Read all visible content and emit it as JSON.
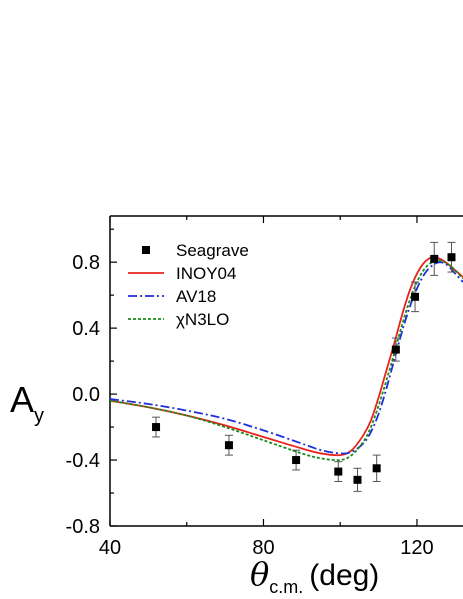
{
  "chart_data": {
    "type": "line",
    "title": "",
    "xlabel": {
      "symbol": "θ",
      "subscript": "c.m.",
      "unit": "(deg)"
    },
    "ylabel": {
      "symbol": "A",
      "subscript": "y"
    },
    "xlim": [
      40,
      132
    ],
    "ylim": [
      -0.8,
      1.08
    ],
    "x_ticks": [
      40,
      80,
      120
    ],
    "y_ticks": [
      -0.8,
      -0.4,
      0.0,
      0.4,
      0.8
    ],
    "y_tick_labels": [
      "-0.8",
      "-0.4",
      "0.0",
      "0.4",
      "0.8"
    ],
    "grid": false,
    "legend_position": "top-left",
    "series": [
      {
        "name": "Seagrave",
        "kind": "scatter",
        "marker": "square",
        "color": "#000000",
        "points": [
          {
            "x": 52,
            "y": -0.2,
            "err": 0.06
          },
          {
            "x": 71,
            "y": -0.31,
            "err": 0.06
          },
          {
            "x": 88.5,
            "y": -0.4,
            "err": 0.06
          },
          {
            "x": 99.5,
            "y": -0.47,
            "err": 0.06
          },
          {
            "x": 104.5,
            "y": -0.52,
            "err": 0.07
          },
          {
            "x": 109.5,
            "y": -0.45,
            "err": 0.08
          },
          {
            "x": 114.5,
            "y": 0.27,
            "err": 0.07
          },
          {
            "x": 119.5,
            "y": 0.59,
            "err": 0.09
          },
          {
            "x": 124.5,
            "y": 0.82,
            "err": 0.1
          },
          {
            "x": 129.0,
            "y": 0.83,
            "err": 0.09
          }
        ]
      },
      {
        "name": "INOY04",
        "kind": "line",
        "color": "#e8231d",
        "dash": "solid",
        "x": [
          40,
          50,
          60,
          70,
          80,
          90,
          95,
          100,
          103,
          106,
          108,
          110,
          112,
          114,
          116,
          118,
          120,
          122,
          124,
          126,
          128,
          130,
          132
        ],
        "y": [
          -0.04,
          -0.08,
          -0.13,
          -0.19,
          -0.26,
          -0.33,
          -0.36,
          -0.37,
          -0.34,
          -0.25,
          -0.16,
          -0.02,
          0.14,
          0.3,
          0.47,
          0.62,
          0.73,
          0.8,
          0.83,
          0.82,
          0.79,
          0.75,
          0.71
        ]
      },
      {
        "name": "AV18",
        "kind": "line",
        "color": "#1c2fd8",
        "dash": "dashdot",
        "x": [
          40,
          50,
          60,
          70,
          80,
          90,
          95,
          100,
          103,
          106,
          108,
          110,
          112,
          114,
          116,
          118,
          120,
          122,
          124,
          126,
          128,
          130,
          132
        ],
        "y": [
          -0.03,
          -0.06,
          -0.1,
          -0.15,
          -0.22,
          -0.3,
          -0.34,
          -0.36,
          -0.35,
          -0.3,
          -0.23,
          -0.12,
          0.03,
          0.2,
          0.37,
          0.52,
          0.64,
          0.73,
          0.78,
          0.8,
          0.78,
          0.73,
          0.68
        ]
      },
      {
        "name": "χN3LO",
        "kind": "line",
        "color": "#1a8a1a",
        "dash": "dotted",
        "x": [
          40,
          50,
          60,
          70,
          80,
          90,
          95,
          100,
          103,
          106,
          108,
          110,
          112,
          114,
          116,
          118,
          120,
          122,
          124,
          126,
          128,
          130,
          132
        ],
        "y": [
          -0.04,
          -0.08,
          -0.13,
          -0.2,
          -0.28,
          -0.36,
          -0.39,
          -0.4,
          -0.37,
          -0.29,
          -0.2,
          -0.07,
          0.08,
          0.24,
          0.41,
          0.56,
          0.68,
          0.76,
          0.8,
          0.81,
          0.79,
          0.75,
          0.7
        ]
      }
    ]
  }
}
